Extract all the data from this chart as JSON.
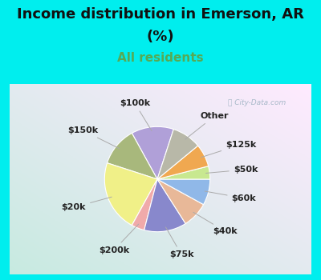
{
  "title_line1": "Income distribution in Emerson, AR",
  "title_line2": "(%)",
  "subtitle": "All residents",
  "title_color": "#111111",
  "subtitle_color": "#55aa55",
  "bg_color": "#00eeee",
  "watermark": "ⓘ City-Data.com",
  "labels": [
    "$100k",
    "$150k",
    "$20k",
    "$200k",
    "$75k",
    "$40k",
    "$60k",
    "$50k",
    "$125k",
    "Other"
  ],
  "sizes": [
    13,
    12,
    22,
    4,
    13,
    8,
    8,
    4,
    7,
    9
  ],
  "colors": [
    "#b0a0d8",
    "#a8b87c",
    "#f0f088",
    "#f0aaaa",
    "#8888cc",
    "#e8b898",
    "#90b8e8",
    "#c8e890",
    "#f0a850",
    "#b8b8a8"
  ],
  "startangle": 72,
  "label_fs": 8,
  "title_fs": 13,
  "subtitle_fs": 11
}
